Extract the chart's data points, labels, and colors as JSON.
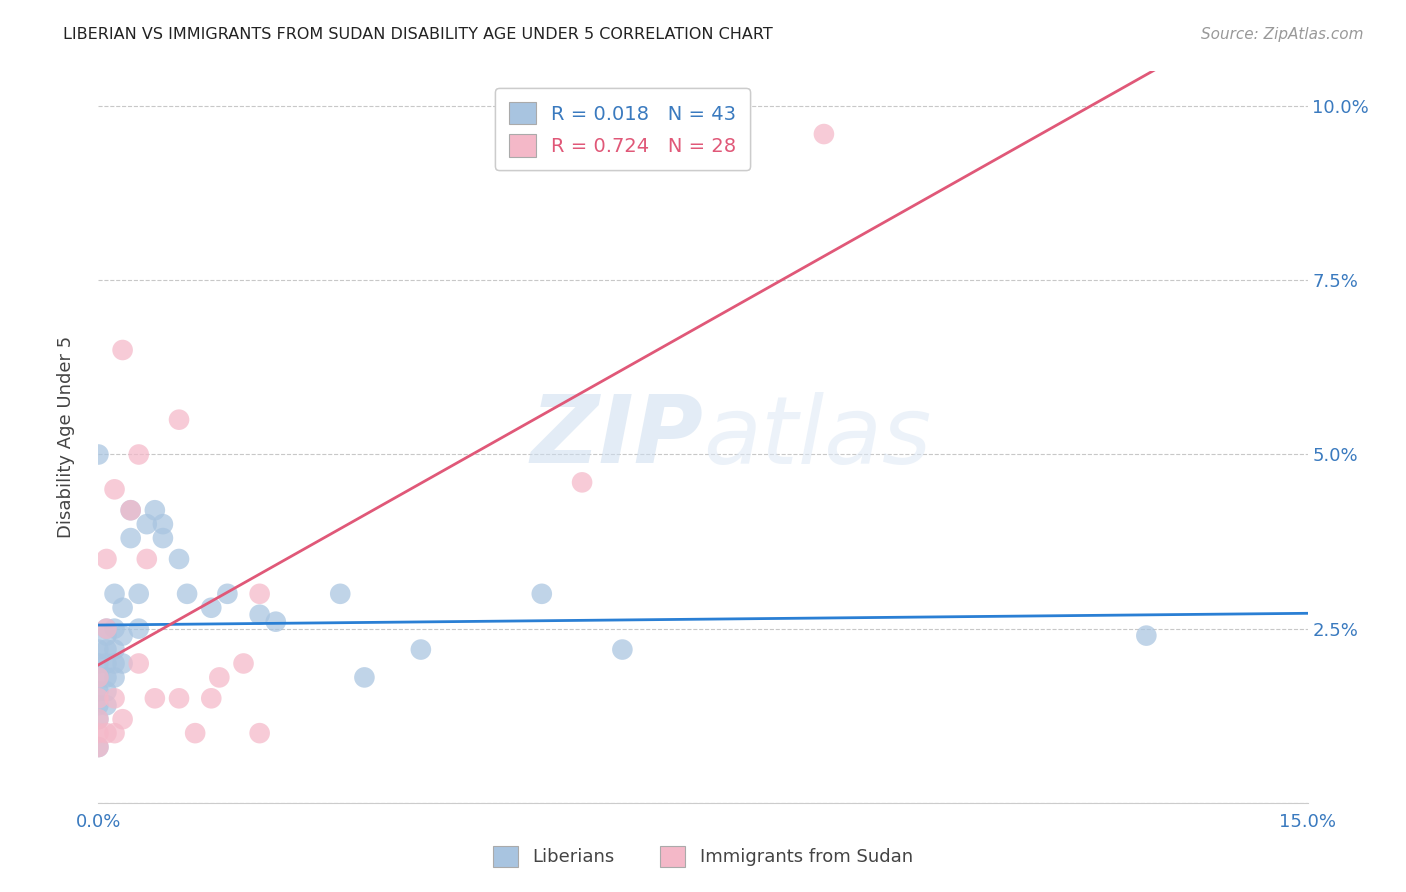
{
  "title": "LIBERIAN VS IMMIGRANTS FROM SUDAN DISABILITY AGE UNDER 5 CORRELATION CHART",
  "source": "Source: ZipAtlas.com",
  "ylabel": "Disability Age Under 5",
  "watermark": "ZIPatlas",
  "xlim": [
    0.0,
    0.15
  ],
  "ylim": [
    0.0,
    0.105
  ],
  "liberian_color": "#a8c4e0",
  "sudan_color": "#f4b8c8",
  "liberian_line_color": "#2a7fd4",
  "sudan_line_color": "#e05878",
  "R_liberian": 0.018,
  "N_liberian": 43,
  "R_sudan": 0.724,
  "N_sudan": 28,
  "liberian_label": "Liberians",
  "sudan_label": "Immigrants from Sudan",
  "liberian_x": [
    0.0,
    0.0,
    0.0,
    0.0,
    0.0,
    0.0,
    0.0,
    0.001,
    0.001,
    0.001,
    0.001,
    0.001,
    0.001,
    0.001,
    0.002,
    0.002,
    0.002,
    0.002,
    0.002,
    0.003,
    0.003,
    0.003,
    0.004,
    0.004,
    0.005,
    0.005,
    0.006,
    0.007,
    0.008,
    0.008,
    0.01,
    0.011,
    0.014,
    0.016,
    0.02,
    0.022,
    0.03,
    0.033,
    0.04,
    0.055,
    0.065,
    0.13,
    0.0
  ],
  "liberian_y": [
    0.022,
    0.02,
    0.018,
    0.016,
    0.014,
    0.012,
    0.008,
    0.025,
    0.024,
    0.022,
    0.02,
    0.018,
    0.016,
    0.014,
    0.03,
    0.025,
    0.022,
    0.02,
    0.018,
    0.028,
    0.024,
    0.02,
    0.042,
    0.038,
    0.03,
    0.025,
    0.04,
    0.042,
    0.04,
    0.038,
    0.035,
    0.03,
    0.028,
    0.03,
    0.027,
    0.026,
    0.03,
    0.018,
    0.022,
    0.03,
    0.022,
    0.024,
    0.05
  ],
  "sudan_x": [
    0.0,
    0.0,
    0.0,
    0.0,
    0.0,
    0.001,
    0.001,
    0.001,
    0.002,
    0.002,
    0.002,
    0.003,
    0.003,
    0.004,
    0.005,
    0.005,
    0.006,
    0.007,
    0.01,
    0.01,
    0.012,
    0.014,
    0.015,
    0.018,
    0.02,
    0.02,
    0.06,
    0.09
  ],
  "sudan_y": [
    0.018,
    0.015,
    0.012,
    0.01,
    0.008,
    0.035,
    0.025,
    0.01,
    0.045,
    0.015,
    0.01,
    0.065,
    0.012,
    0.042,
    0.05,
    0.02,
    0.035,
    0.015,
    0.055,
    0.015,
    0.01,
    0.015,
    0.018,
    0.02,
    0.03,
    0.01,
    0.046,
    0.096
  ],
  "dot_size": 220
}
